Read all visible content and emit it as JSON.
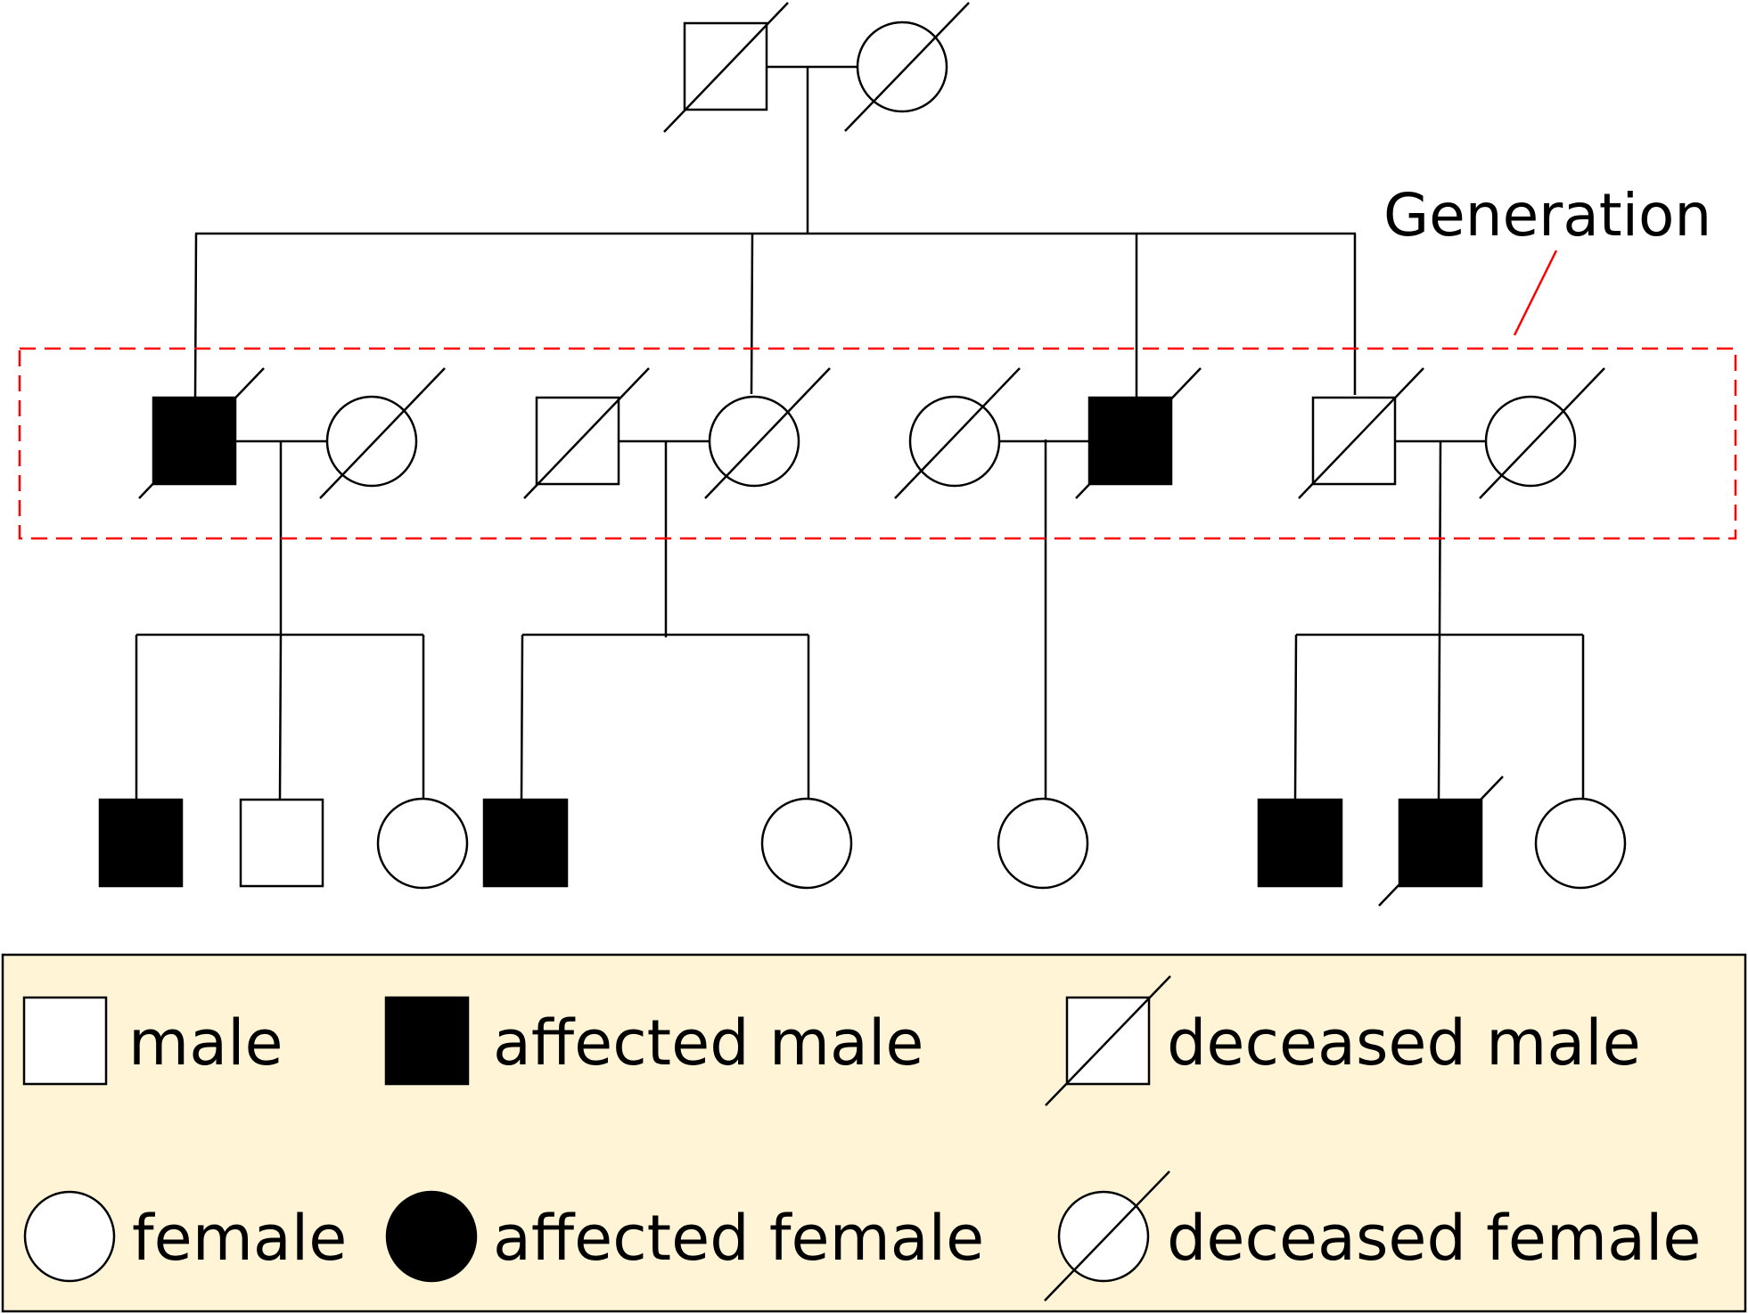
{
  "diagram": {
    "type": "pedigree-chart",
    "generation_label": "Generation",
    "generation_marker_color": "#ff0000",
    "generations": [
      {
        "individuals": [
          {
            "sex": "male",
            "affected": false,
            "deceased": true
          },
          {
            "sex": "female",
            "affected": false,
            "deceased": true
          }
        ]
      },
      {
        "individuals": [
          {
            "sex": "male",
            "affected": true,
            "deceased": true
          },
          {
            "sex": "female",
            "affected": false,
            "deceased": true
          },
          {
            "sex": "male",
            "affected": false,
            "deceased": true
          },
          {
            "sex": "female",
            "affected": false,
            "deceased": true
          },
          {
            "sex": "female",
            "affected": false,
            "deceased": true
          },
          {
            "sex": "male",
            "affected": true,
            "deceased": true
          },
          {
            "sex": "male",
            "affected": false,
            "deceased": true
          },
          {
            "sex": "female",
            "affected": false,
            "deceased": true
          }
        ]
      },
      {
        "individuals": [
          {
            "sex": "male",
            "affected": true,
            "deceased": false
          },
          {
            "sex": "male",
            "affected": false,
            "deceased": false
          },
          {
            "sex": "female",
            "affected": false,
            "deceased": false
          },
          {
            "sex": "male",
            "affected": true,
            "deceased": false
          },
          {
            "sex": "female",
            "affected": false,
            "deceased": false
          },
          {
            "sex": "female",
            "affected": false,
            "deceased": false
          },
          {
            "sex": "male",
            "affected": true,
            "deceased": false
          },
          {
            "sex": "male",
            "affected": true,
            "deceased": true
          },
          {
            "sex": "female",
            "affected": false,
            "deceased": false
          }
        ]
      }
    ]
  },
  "legend": {
    "background_color": "#fff5d6",
    "items": [
      {
        "label": "male",
        "icon": "male-square-icon"
      },
      {
        "label": "affected male",
        "icon": "affected-male-square-icon"
      },
      {
        "label": "deceased male",
        "icon": "deceased-male-square-icon"
      },
      {
        "label": "female",
        "icon": "female-circle-icon"
      },
      {
        "label": "affected female",
        "icon": "affected-female-circle-icon"
      },
      {
        "label": "deceased female",
        "icon": "deceased-female-circle-icon"
      }
    ]
  }
}
